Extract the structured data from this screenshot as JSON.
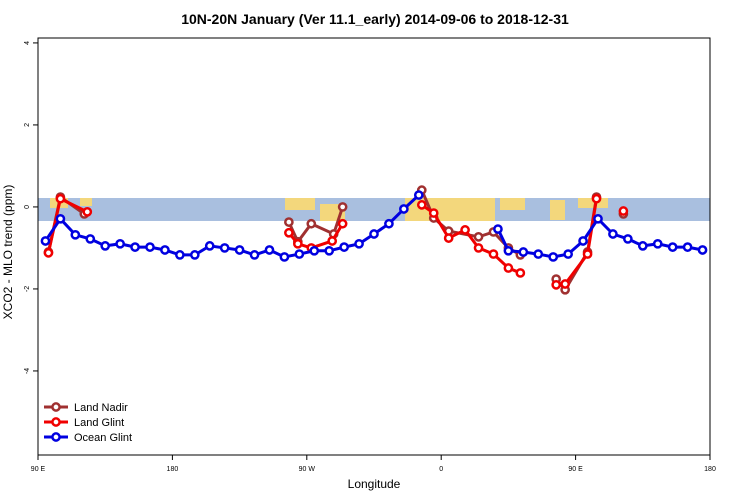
{
  "chart_data": {
    "type": "line",
    "title": "10N-20N January (Ver 11.1_early)   2014-09-06 to 2018-12-31",
    "x_label": "Longitude",
    "y_label": "XCO2 - MLO trend (ppm)",
    "xlim": [
      90,
      540
    ],
    "ylim": [
      -6.05,
      4.12
    ],
    "xticks": [
      {
        "value": 90,
        "label": "90 E"
      },
      180,
      {
        "value": 270,
        "label": "90 W"
      },
      {
        "value": 360,
        "label": "0"
      },
      {
        "value": 450,
        "label": "90 E"
      },
      {
        "value": 540,
        "label": "180"
      }
    ],
    "yticks": [
      4,
      2,
      0,
      -2,
      -4
    ],
    "legend": "bottom-left",
    "series": [
      {
        "name": "Land Nadir",
        "color": "#a03030",
        "x": [
          97,
          105,
          121,
          null,
          258,
          264,
          273,
          288,
          294,
          null,
          347,
          355,
          365,
          385,
          395,
          405,
          413,
          null,
          437,
          443,
          458,
          464,
          null,
          482
        ],
        "values": [
          -1.1,
          0.24,
          -0.17,
          null,
          -0.37,
          -0.85,
          -0.41,
          -0.66,
          0.0,
          null,
          0.41,
          -0.27,
          -0.59,
          -0.73,
          -0.61,
          -1.0,
          -1.17,
          null,
          -1.76,
          -2.02,
          -1.1,
          0.24,
          null,
          -0.17
        ]
      },
      {
        "name": "Land Glint",
        "color": "#f00000",
        "x": [
          97,
          105,
          123,
          null,
          258,
          264,
          273,
          287,
          294,
          null,
          347,
          355,
          365,
          376,
          385,
          395,
          405,
          413,
          null,
          437,
          443,
          458,
          464,
          null,
          482
        ],
        "values": [
          -1.12,
          0.2,
          -0.12,
          null,
          -0.63,
          -0.9,
          -1.0,
          -0.83,
          -0.41,
          null,
          0.05,
          -0.15,
          -0.76,
          -0.56,
          -1.0,
          -1.15,
          -1.49,
          -1.61,
          null,
          -1.9,
          -1.88,
          -1.15,
          0.2,
          null,
          -0.1
        ]
      },
      {
        "name": "Ocean Glint",
        "color": "#0000e0",
        "x": [
          95,
          105,
          115,
          125,
          135,
          145,
          155,
          165,
          175,
          185,
          195,
          205,
          215,
          225,
          235,
          245,
          255,
          265,
          275,
          285,
          295,
          305,
          315,
          325,
          335,
          345,
          null,
          398,
          405,
          415,
          425,
          435,
          445,
          455,
          465,
          475,
          485,
          495,
          505,
          515,
          525,
          535
        ],
        "values": [
          -0.83,
          -0.29,
          -0.68,
          -0.78,
          -0.95,
          -0.9,
          -0.98,
          -0.98,
          -1.05,
          -1.17,
          -1.17,
          -0.95,
          -1.0,
          -1.05,
          -1.17,
          -1.05,
          -1.22,
          -1.15,
          -1.07,
          -1.07,
          -0.98,
          -0.9,
          -0.66,
          -0.41,
          -0.05,
          0.29,
          null,
          -0.54,
          -1.07,
          -1.1,
          -1.15,
          -1.22,
          -1.15,
          -0.83,
          -0.29,
          -0.66,
          -0.78,
          -0.95,
          -0.9,
          -0.98,
          -0.98,
          -1.05
        ]
      }
    ]
  }
}
